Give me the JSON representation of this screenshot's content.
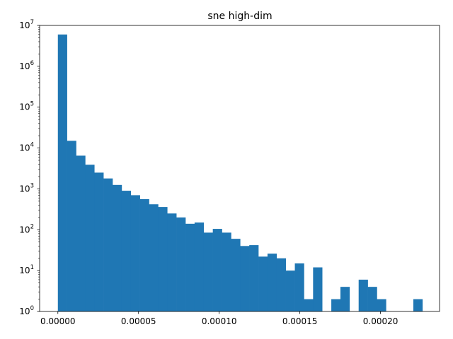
{
  "chart_data": {
    "type": "bar",
    "title": "sne high-dim",
    "xlabel": "",
    "ylabel": "",
    "xlim": [
      -1.13e-05,
      0.0002366
    ],
    "ylim": [
      1,
      10000000
    ],
    "yscale": "log",
    "grid": false,
    "color": "#1f77b4",
    "bin_width": 5.65e-06,
    "x_ticks": [
      {
        "value": 0.0,
        "label": "0.00000"
      },
      {
        "value": 5e-05,
        "label": "0.00005"
      },
      {
        "value": 0.0001,
        "label": "0.00010"
      },
      {
        "value": 0.00015,
        "label": "0.00015"
      },
      {
        "value": 0.0002,
        "label": "0.00020"
      }
    ],
    "y_ticks": [
      {
        "value": 1,
        "base": "10",
        "exp": "0"
      },
      {
        "value": 10,
        "base": "10",
        "exp": "1"
      },
      {
        "value": 100,
        "base": "10",
        "exp": "2"
      },
      {
        "value": 1000,
        "base": "10",
        "exp": "3"
      },
      {
        "value": 10000,
        "base": "10",
        "exp": "4"
      },
      {
        "value": 100000,
        "base": "10",
        "exp": "5"
      },
      {
        "value": 1000000,
        "base": "10",
        "exp": "6"
      },
      {
        "value": 10000000,
        "base": "10",
        "exp": "7"
      }
    ],
    "bins": [
      {
        "x0": 0.0,
        "x1": 5.65e-06,
        "count": 6000000
      },
      {
        "x0": 5.65e-06,
        "x1": 1.13e-05,
        "count": 15000
      },
      {
        "x0": 1.13e-05,
        "x1": 1.695e-05,
        "count": 6500
      },
      {
        "x0": 1.695e-05,
        "x1": 2.26e-05,
        "count": 3900
      },
      {
        "x0": 2.26e-05,
        "x1": 2.825e-05,
        "count": 2500
      },
      {
        "x0": 2.825e-05,
        "x1": 3.39e-05,
        "count": 1800
      },
      {
        "x0": 3.39e-05,
        "x1": 3.955e-05,
        "count": 1250
      },
      {
        "x0": 3.955e-05,
        "x1": 4.52e-05,
        "count": 900
      },
      {
        "x0": 4.52e-05,
        "x1": 5.085e-05,
        "count": 700
      },
      {
        "x0": 5.085e-05,
        "x1": 5.65e-05,
        "count": 560
      },
      {
        "x0": 5.65e-05,
        "x1": 6.215e-05,
        "count": 420
      },
      {
        "x0": 6.215e-05,
        "x1": 6.78e-05,
        "count": 360
      },
      {
        "x0": 6.78e-05,
        "x1": 7.345e-05,
        "count": 250
      },
      {
        "x0": 7.345e-05,
        "x1": 7.91e-05,
        "count": 200
      },
      {
        "x0": 7.91e-05,
        "x1": 8.475e-05,
        "count": 140
      },
      {
        "x0": 8.475e-05,
        "x1": 9.04e-05,
        "count": 150
      },
      {
        "x0": 9.04e-05,
        "x1": 9.605e-05,
        "count": 85
      },
      {
        "x0": 9.605e-05,
        "x1": 0.0001017,
        "count": 105
      },
      {
        "x0": 0.0001017,
        "x1": 0.00010735,
        "count": 85
      },
      {
        "x0": 0.00010735,
        "x1": 0.000113,
        "count": 60
      },
      {
        "x0": 0.000113,
        "x1": 0.00011865,
        "count": 40
      },
      {
        "x0": 0.00011865,
        "x1": 0.0001243,
        "count": 42
      },
      {
        "x0": 0.0001243,
        "x1": 0.00012995,
        "count": 22
      },
      {
        "x0": 0.00012995,
        "x1": 0.0001356,
        "count": 26
      },
      {
        "x0": 0.0001356,
        "x1": 0.00014125,
        "count": 20
      },
      {
        "x0": 0.00014125,
        "x1": 0.0001469,
        "count": 10
      },
      {
        "x0": 0.0001469,
        "x1": 0.00015255,
        "count": 15
      },
      {
        "x0": 0.00015255,
        "x1": 0.0001582,
        "count": 2
      },
      {
        "x0": 0.0001582,
        "x1": 0.00016385,
        "count": 12
      },
      {
        "x0": 0.00016385,
        "x1": 0.0001695,
        "count": 0
      },
      {
        "x0": 0.0001695,
        "x1": 0.00017515,
        "count": 2
      },
      {
        "x0": 0.00017515,
        "x1": 0.0001808,
        "count": 4
      },
      {
        "x0": 0.0001808,
        "x1": 0.00018645,
        "count": 0
      },
      {
        "x0": 0.00018645,
        "x1": 0.0001921,
        "count": 6
      },
      {
        "x0": 0.0001921,
        "x1": 0.00019775,
        "count": 4
      },
      {
        "x0": 0.00019775,
        "x1": 0.0002034,
        "count": 2
      },
      {
        "x0": 0.0002034,
        "x1": 0.00020905,
        "count": 0
      },
      {
        "x0": 0.00020905,
        "x1": 0.0002147,
        "count": 0
      },
      {
        "x0": 0.0002147,
        "x1": 0.00022035,
        "count": 0
      },
      {
        "x0": 0.00022035,
        "x1": 0.000226,
        "count": 2
      }
    ]
  }
}
